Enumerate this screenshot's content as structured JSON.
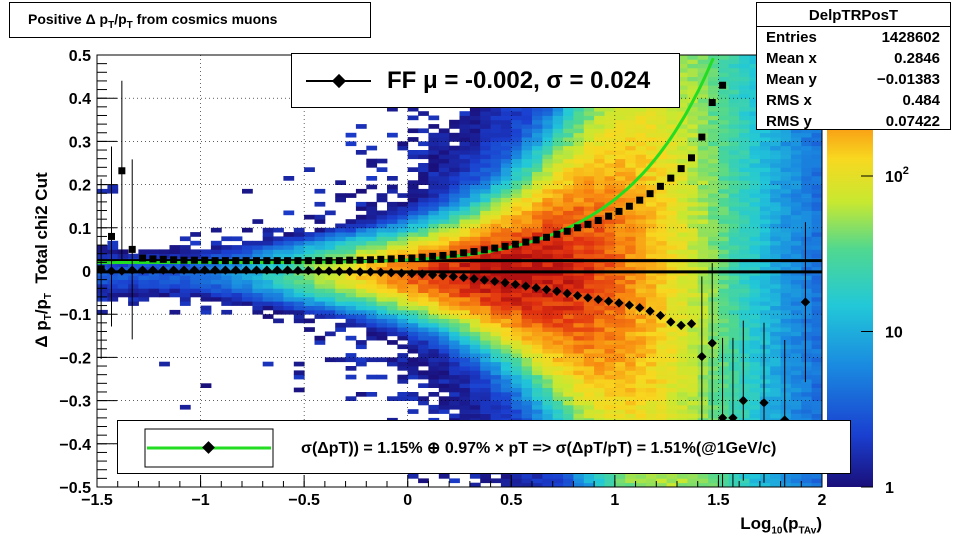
{
  "title": "Positive Δ p_T/p_T from cosmics muons",
  "stats": {
    "name": "DelpTRPosT",
    "rows": [
      {
        "label": "Entries",
        "value": "1428602"
      },
      {
        "label": "Mean x",
        "value": "0.2846"
      },
      {
        "label": "Mean y",
        "value": "−0.01383"
      },
      {
        "label": "RMS x",
        "value": "0.484"
      },
      {
        "label": "RMS y",
        "value": "0.07422"
      }
    ]
  },
  "fit_legend": "FF μ = -0.002, σ =   0.024",
  "resolution_legend": "σ(ΔpT)) =  1.15% ⊕  0.97% × pT => σ(ΔpT/pT) =  1.51%(@1GeV/c)",
  "axes": {
    "ylabel_main": "Δ p",
    "ylabel_sub": "T",
    "ylabel_mid": "/p",
    "ylabel_sub2": "T",
    "ylabel_tail": "  Total chi2 Cut",
    "xlabel_main": "Log",
    "xlabel_sub": "10",
    "xlabel_mid": "(p",
    "xlabel_sub2": "TAv",
    "xlabel_tail": ")"
  },
  "colors": {
    "fit_curve": "#22dd22",
    "markers": "#000000",
    "palette_low": "#1a0f7a",
    "palette_high": "#b01010"
  },
  "chart_data": {
    "type": "heatmap",
    "xlim": [
      -1.5,
      2.0
    ],
    "ylim": [
      -0.5,
      0.5
    ],
    "zscale": "log",
    "zlim": [
      1,
      600
    ],
    "x_ticks": [
      "−1.5",
      "−1",
      "−0.5",
      "0",
      "0.5",
      "1",
      "1.5",
      "2"
    ],
    "x_tick_values": [
      -1.5,
      -1,
      -0.5,
      0,
      0.5,
      1,
      1.5,
      2
    ],
    "y_ticks": [
      "−0.5",
      "−0.4",
      "−0.3",
      "−0.2",
      "−0.1",
      "0",
      "0.1",
      "0.2",
      "0.3",
      "0.4",
      "0.5"
    ],
    "y_tick_values": [
      -0.5,
      -0.4,
      -0.3,
      -0.2,
      -0.1,
      0,
      0.1,
      0.2,
      0.3,
      0.4,
      0.5
    ],
    "z_ticks": [
      "1",
      "10",
      "10²"
    ],
    "z_tick_values": [
      1,
      10,
      100
    ],
    "reference_lines_y": [
      0.024,
      -0.002
    ],
    "resolution_curve": {
      "a": 0.0115,
      "b": 0.0097
    },
    "series": [
      {
        "name": "",
        "x": [
          -1.48,
          -1.43,
          -1.38,
          -1.33,
          -1.28,
          -1.23,
          -1.18,
          -1.13,
          -1.08,
          -1.03,
          -0.98,
          -0.93,
          -0.88,
          -0.83,
          -0.78,
          -0.73,
          -0.68,
          -0.63,
          -0.58,
          -0.53,
          -0.48,
          -0.43,
          -0.38,
          -0.33,
          -0.28,
          -0.23,
          -0.18,
          -0.13,
          -0.08,
          -0.03,
          0.02,
          0.07,
          0.12,
          0.17,
          0.22,
          0.27,
          0.32,
          0.37,
          0.42,
          0.47,
          0.52,
          0.57,
          0.62,
          0.67,
          0.72,
          0.77,
          0.82,
          0.87,
          0.92,
          0.97,
          1.02,
          1.07,
          1.12,
          1.17,
          1.22,
          1.27,
          1.32,
          1.37,
          1.42,
          1.47,
          1.52
        ],
        "y": [
          0.005,
          0.08,
          0.232,
          0.05,
          0.03,
          0.028,
          0.027,
          0.026,
          0.025,
          0.025,
          0.025,
          0.024,
          0.024,
          0.024,
          0.024,
          0.024,
          0.024,
          0.024,
          0.024,
          0.024,
          0.024,
          0.024,
          0.024,
          0.024,
          0.025,
          0.025,
          0.026,
          0.027,
          0.028,
          0.029,
          0.03,
          0.032,
          0.034,
          0.036,
          0.039,
          0.042,
          0.045,
          0.049,
          0.053,
          0.057,
          0.062,
          0.067,
          0.072,
          0.078,
          0.085,
          0.092,
          0.1,
          0.108,
          0.117,
          0.127,
          0.138,
          0.15,
          0.164,
          0.179,
          0.196,
          0.215,
          0.237,
          0.262,
          0.31,
          0.39,
          0.43
        ]
      },
      {
        "name": "",
        "x": [
          -1.48,
          -1.43,
          -1.38,
          -1.33,
          -1.28,
          -1.23,
          -1.18,
          -1.13,
          -1.08,
          -1.03,
          -0.98,
          -0.93,
          -0.88,
          -0.83,
          -0.78,
          -0.73,
          -0.68,
          -0.63,
          -0.58,
          -0.53,
          -0.48,
          -0.43,
          -0.38,
          -0.33,
          -0.28,
          -0.23,
          -0.18,
          -0.13,
          -0.08,
          -0.03,
          0.02,
          0.07,
          0.12,
          0.17,
          0.22,
          0.27,
          0.32,
          0.37,
          0.42,
          0.47,
          0.52,
          0.57,
          0.62,
          0.67,
          0.72,
          0.77,
          0.82,
          0.87,
          0.92,
          0.97,
          1.02,
          1.07,
          1.12,
          1.17,
          1.22,
          1.27,
          1.32,
          1.37,
          1.42,
          1.47,
          1.52,
          1.57,
          1.62,
          1.72,
          1.82,
          1.92
        ],
        "y": [
          0.003,
          0.0,
          0.0,
          0.002,
          0.002,
          0.002,
          0.002,
          0.002,
          0.002,
          0.002,
          0.002,
          0.002,
          0.002,
          0.002,
          0.002,
          0.002,
          0.002,
          0.002,
          0.002,
          0.001,
          0.001,
          0.0,
          0.0,
          -0.001,
          -0.001,
          -0.002,
          -0.002,
          -0.003,
          -0.004,
          -0.005,
          -0.006,
          -0.007,
          -0.009,
          -0.011,
          -0.013,
          -0.015,
          -0.018,
          -0.021,
          -0.024,
          -0.027,
          -0.031,
          -0.035,
          -0.039,
          -0.043,
          -0.047,
          -0.052,
          -0.057,
          -0.062,
          -0.066,
          -0.07,
          -0.074,
          -0.079,
          -0.085,
          -0.093,
          -0.103,
          -0.118,
          -0.126,
          -0.122,
          -0.198,
          -0.167,
          -0.34,
          -0.34,
          -0.3,
          -0.305,
          -0.345,
          -0.072
        ]
      }
    ]
  }
}
